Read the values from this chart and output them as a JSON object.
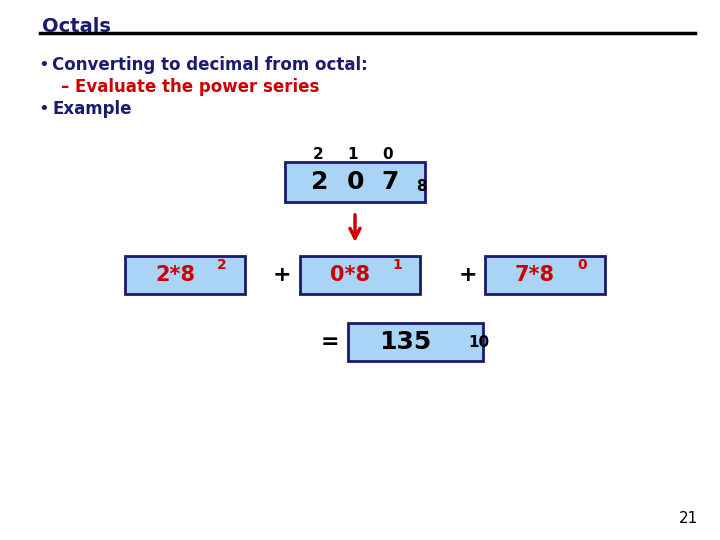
{
  "title": "Octals",
  "title_color": "#1a1a6e",
  "bg_color": "#ffffff",
  "bullet1": "Converting to decimal from octal:",
  "sub_bullet": "Evaluate the power series",
  "bullet2": "Example",
  "bullet_color": "#1a1a6e",
  "sub_bullet_color": "#cc0000",
  "octal_sub": "8",
  "box_fill": "#aad4f5",
  "box_edge": "#1a1a6e",
  "term1": "2*8",
  "term1_sup": "2",
  "term2": "0*8",
  "term2_sup": "1",
  "term3": "7*8",
  "term3_sup": "0",
  "result": "135",
  "result_sub": "10",
  "arrow_color": "#cc0000",
  "plus_color": "#000000",
  "equals_color": "#000000",
  "page_number": "21",
  "term_color": "#cc0000",
  "number_color": "#000000"
}
